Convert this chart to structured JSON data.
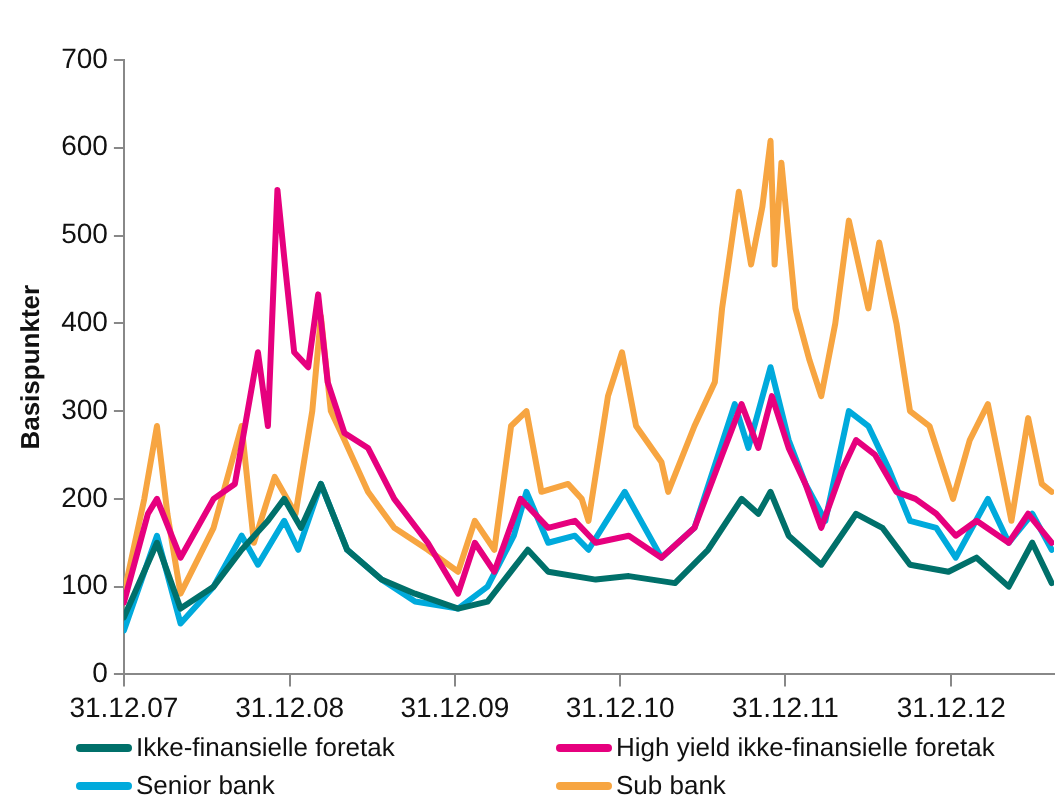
{
  "chart_data": {
    "type": "line",
    "ylabel": "Basispunkter",
    "xlim": [
      "2007-12-31",
      "2013-08-15"
    ],
    "xticks": [
      {
        "value": "2007-12-31",
        "label": "31.12.07"
      },
      {
        "value": "2008-12-31",
        "label": "31.12.08"
      },
      {
        "value": "2009-12-31",
        "label": "31.12.09"
      },
      {
        "value": "2010-12-31",
        "label": "31.12.10"
      },
      {
        "value": "2011-12-31",
        "label": "31.12.11"
      },
      {
        "value": "2012-12-31",
        "label": "31.12.12"
      }
    ],
    "ylim": [
      0,
      700
    ],
    "yticks": [
      0,
      100,
      200,
      300,
      400,
      500,
      600,
      700
    ],
    "grid": false,
    "legend": "bottom",
    "marker": "none",
    "line_style": "solid",
    "series": [
      {
        "name": "Ikke-finansielle foretak",
        "color": "#00706a",
        "x": [
          "2007-12-31",
          "2008-03-13",
          "2008-05-04",
          "2008-07-16",
          "2008-09-16",
          "2008-11-13",
          "2008-12-19",
          "2009-01-25",
          "2009-03-10",
          "2009-05-07",
          "2009-07-22",
          "2009-10-04",
          "2010-01-07",
          "2010-03-13",
          "2010-06-10",
          "2010-07-25",
          "2010-11-07",
          "2011-01-19",
          "2011-05-01",
          "2011-07-13",
          "2011-09-25",
          "2011-11-01",
          "2011-11-28",
          "2012-01-07",
          "2012-03-19",
          "2012-06-04",
          "2012-08-01",
          "2012-10-01",
          "2012-12-25",
          "2013-02-25",
          "2013-05-07",
          "2013-06-28",
          "2013-08-10"
        ],
        "values": [
          65,
          150,
          75,
          100,
          142,
          175,
          200,
          167,
          217,
          142,
          108,
          92,
          75,
          83,
          142,
          117,
          108,
          112,
          104,
          142,
          200,
          183,
          208,
          158,
          125,
          183,
          167,
          125,
          117,
          133,
          100,
          150,
          104
        ]
      },
      {
        "name": "High yield ikke-finansielle foretak",
        "color": "#e6007e",
        "x": [
          "2007-12-31",
          "2008-02-22",
          "2008-03-13",
          "2008-05-04",
          "2008-07-16",
          "2008-09-01",
          "2008-10-22",
          "2008-11-13",
          "2008-11-22",
          "2008-12-04",
          "2008-12-19",
          "2009-01-10",
          "2009-02-10",
          "2009-03-04",
          "2009-03-25",
          "2009-05-01",
          "2009-06-22",
          "2009-08-19",
          "2009-11-01",
          "2010-01-07",
          "2010-02-13",
          "2010-03-28",
          "2010-05-25",
          "2010-07-25",
          "2010-09-22",
          "2010-11-07",
          "2011-01-19",
          "2011-04-01",
          "2011-06-13",
          "2011-08-13",
          "2011-09-25",
          "2011-11-01",
          "2011-12-01",
          "2012-01-07",
          "2012-02-13",
          "2012-03-19",
          "2012-05-04",
          "2012-06-04",
          "2012-07-16",
          "2012-09-01",
          "2012-10-13",
          "2012-11-28",
          "2013-01-10",
          "2013-02-25",
          "2013-05-07",
          "2013-06-19",
          "2013-08-10"
        ],
        "values": [
          82,
          183,
          200,
          133,
          200,
          217,
          367,
          283,
          400,
          552,
          475,
          367,
          350,
          433,
          333,
          275,
          258,
          200,
          150,
          92,
          150,
          117,
          200,
          167,
          175,
          150,
          158,
          133,
          167,
          250,
          308,
          258,
          317,
          258,
          217,
          167,
          233,
          267,
          250,
          208,
          200,
          183,
          158,
          175,
          150,
          183,
          150
        ]
      },
      {
        "name": "Senior bank",
        "color": "#00aadc",
        "x": [
          "2007-12-31",
          "2008-03-13",
          "2008-05-04",
          "2008-07-16",
          "2008-09-16",
          "2008-10-22",
          "2008-12-19",
          "2009-01-19",
          "2009-03-10",
          "2009-05-07",
          "2009-07-22",
          "2009-10-04",
          "2010-01-07",
          "2010-03-13",
          "2010-05-10",
          "2010-06-07",
          "2010-07-25",
          "2010-09-22",
          "2010-10-22",
          "2011-01-10",
          "2011-04-01",
          "2011-06-13",
          "2011-09-10",
          "2011-10-10",
          "2011-11-28",
          "2012-01-07",
          "2012-02-13",
          "2012-03-28",
          "2012-05-19",
          "2012-07-01",
          "2012-08-16",
          "2012-10-01",
          "2012-11-28",
          "2013-01-10",
          "2013-03-22",
          "2013-05-07",
          "2013-06-28",
          "2013-08-10"
        ],
        "values": [
          50,
          158,
          58,
          100,
          158,
          125,
          175,
          142,
          217,
          142,
          108,
          83,
          75,
          100,
          158,
          208,
          150,
          158,
          142,
          208,
          133,
          167,
          308,
          258,
          350,
          267,
          217,
          175,
          300,
          283,
          233,
          175,
          167,
          133,
          200,
          150,
          183,
          142
        ]
      },
      {
        "name": "Sub bank",
        "color": "#f7a541",
        "x": [
          "2007-12-31",
          "2008-02-14",
          "2008-03-13",
          "2008-04-05",
          "2008-05-04",
          "2008-07-16",
          "2008-09-16",
          "2008-10-13",
          "2008-11-28",
          "2009-01-13",
          "2009-02-19",
          "2009-03-10",
          "2009-04-01",
          "2009-05-01",
          "2009-06-22",
          "2009-08-19",
          "2009-11-01",
          "2010-01-07",
          "2010-02-13",
          "2010-03-28",
          "2010-05-04",
          "2010-06-07",
          "2010-07-10",
          "2010-09-07",
          "2010-10-07",
          "2010-10-22",
          "2010-12-04",
          "2011-01-04",
          "2011-02-04",
          "2011-04-01",
          "2011-04-16",
          "2011-06-13",
          "2011-07-28",
          "2011-08-13",
          "2011-09-19",
          "2011-10-16",
          "2011-11-10",
          "2011-11-28",
          "2011-12-07",
          "2011-12-22",
          "2012-01-22",
          "2012-02-22",
          "2012-03-19",
          "2012-04-19",
          "2012-05-19",
          "2012-07-01",
          "2012-07-25",
          "2012-09-01",
          "2012-10-01",
          "2012-11-13",
          "2013-01-04",
          "2013-02-10",
          "2013-03-22",
          "2013-05-13",
          "2013-06-19",
          "2013-07-19",
          "2013-08-10"
        ],
        "values": [
          92,
          200,
          283,
          183,
          92,
          167,
          283,
          150,
          225,
          183,
          300,
          408,
          300,
          267,
          208,
          167,
          142,
          117,
          175,
          142,
          283,
          300,
          208,
          217,
          200,
          175,
          317,
          367,
          283,
          242,
          208,
          283,
          333,
          417,
          550,
          467,
          533,
          608,
          467,
          583,
          417,
          358,
          317,
          400,
          517,
          417,
          492,
          400,
          300,
          283,
          200,
          267,
          308,
          175,
          292,
          217,
          208
        ]
      }
    ]
  }
}
